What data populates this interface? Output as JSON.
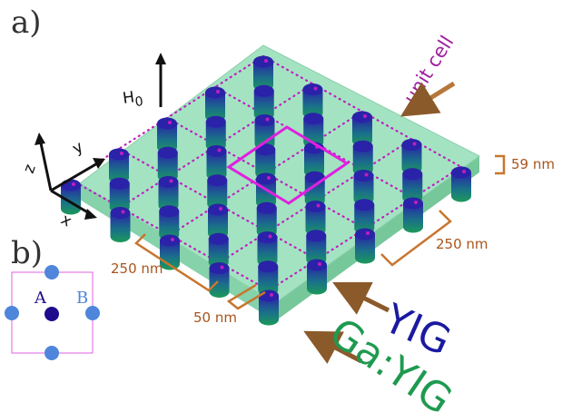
{
  "panels": {
    "a": "a)",
    "b": "b)"
  },
  "field": {
    "symbol": "H",
    "subscript": "0"
  },
  "axes": {
    "x": "x",
    "y": "y",
    "z": "z"
  },
  "labels": {
    "unit_cell": "unit cell",
    "thickness": "59 nm",
    "period_right": "250 nm",
    "period_left": "250 nm",
    "diameter": "50 nm",
    "pillar_material": "YIG",
    "substrate_material": "Ga:YIG"
  },
  "unit_cell_sites": {
    "a": "A",
    "b": "B"
  },
  "colors": {
    "substrate": "#8fd9b2",
    "pillar_top": "#2a22a8",
    "pillar_bottom": "#1c9a5a",
    "unit_cell_line": "#e020e0",
    "lattice_dots": "#c01ec0",
    "dimension": "#c8752e",
    "arrow": "#8b5a2b",
    "yig_text": "#1a1aa0",
    "gayig_text": "#1e9a50",
    "site_a": "#1e0c8c",
    "site_b": "#4f86dc"
  }
}
